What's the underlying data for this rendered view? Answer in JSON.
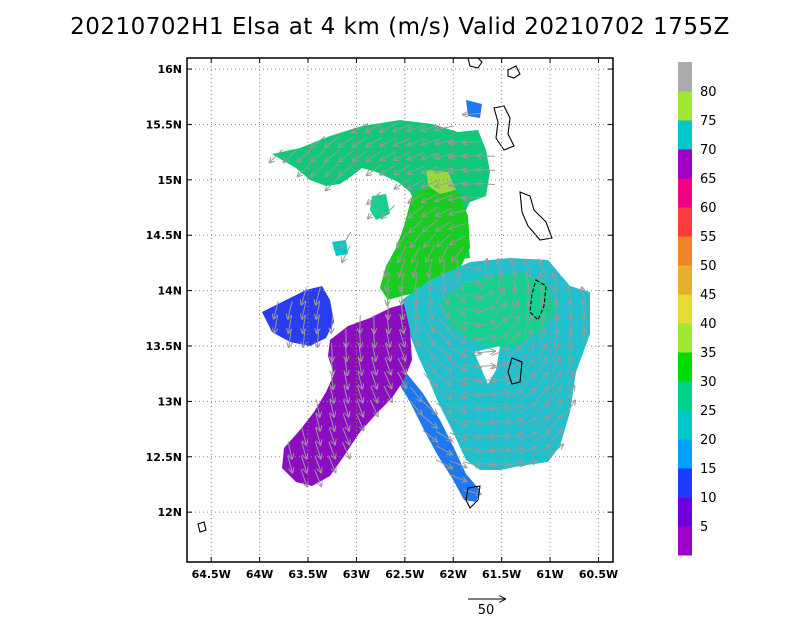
{
  "title": "20210702H1 Elsa at 4 km (m/s) Valid 20210702 1755Z",
  "lon_axis": {
    "range": [
      -64.75,
      -60.35
    ],
    "ticks": [
      -64.5,
      -64,
      -63.5,
      -63,
      -62.5,
      -62,
      -61.5,
      -61,
      -60.5
    ],
    "labels": [
      "64.5W",
      "64W",
      "63.5W",
      "63W",
      "62.5W",
      "62W",
      "61.5W",
      "61W",
      "60.5W"
    ]
  },
  "lat_axis": {
    "range": [
      11.55,
      16.1
    ],
    "ticks": [
      12,
      12.5,
      13,
      13.5,
      14,
      14.5,
      15,
      15.5,
      16
    ],
    "labels": [
      "12N",
      "12.5N",
      "13N",
      "13.5N",
      "14N",
      "14.5N",
      "15N",
      "15.5N",
      "16N"
    ]
  },
  "grid": "dotted",
  "colorbar": {
    "unit": "m/s",
    "labels": [
      "5",
      "10",
      "15",
      "20",
      "25",
      "30",
      "35",
      "40",
      "45",
      "50",
      "55",
      "60",
      "65",
      "70",
      "75",
      "80"
    ],
    "colors": [
      "#a000c8",
      "#6e00dc",
      "#1e3cff",
      "#00a0ff",
      "#00c8c8",
      "#00d28c",
      "#00dc00",
      "#a0e632",
      "#e6dc32",
      "#e6af2d",
      "#f08228",
      "#fa3c3c",
      "#f00082",
      "#a000c8",
      "#00c8c8",
      "#a0e632",
      "#aaaaaa"
    ]
  },
  "reference_vector": {
    "label": "50",
    "value": 50
  },
  "wind_field": {
    "regions": [
      {
        "name": "northern-band",
        "speed": 25
      },
      {
        "name": "core-band",
        "speed": 30
      },
      {
        "name": "eastern-swath",
        "speed": 20
      },
      {
        "name": "southern-swath",
        "speed": 15
      },
      {
        "name": "southwest-lobe",
        "speed": 5
      },
      {
        "name": "west-fragment",
        "speed": 10
      }
    ]
  }
}
